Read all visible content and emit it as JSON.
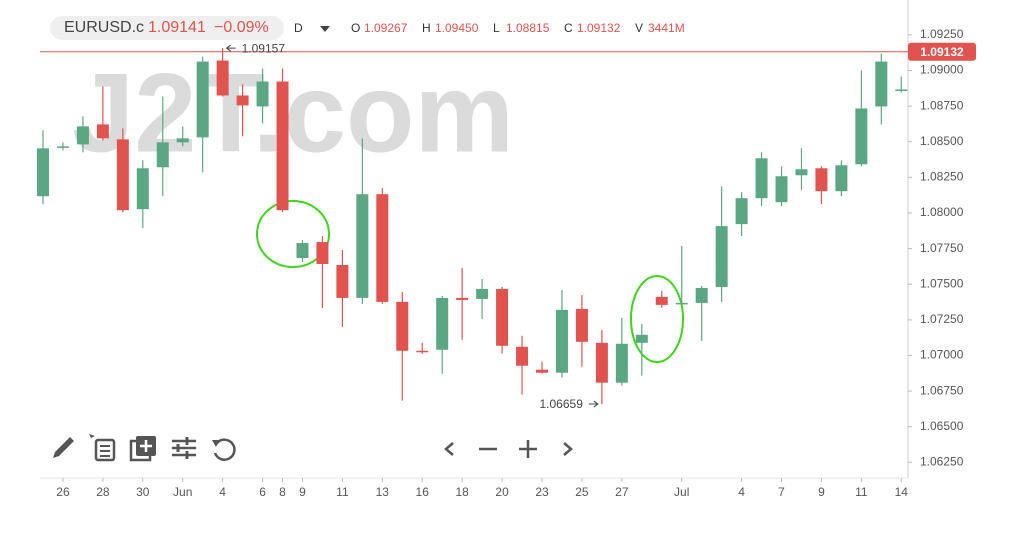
{
  "chart_data": {
    "type": "candlestick",
    "header": {
      "symbol": "EURUSD.c",
      "price": "1.09141",
      "change": "−0.09%",
      "timeframe": "D",
      "ohlcv": [
        {
          "key": "O",
          "value": "1.09267"
        },
        {
          "key": "H",
          "value": "1.09450"
        },
        {
          "key": "L",
          "value": "1.08815"
        },
        {
          "key": "C",
          "value": "1.09132"
        },
        {
          "key": "V",
          "value": "3441M"
        }
      ]
    },
    "watermark": "J2T.com",
    "categories": [
      null,
      "26",
      null,
      "28",
      null,
      "30",
      null,
      "Jun",
      null,
      "4",
      null,
      "6",
      "8",
      "9",
      null,
      "11",
      null,
      "13",
      null,
      "16",
      null,
      "18",
      null,
      "20",
      null,
      "23",
      null,
      "25",
      null,
      "27",
      null,
      null,
      "Jul",
      null,
      null,
      "4",
      null,
      "7",
      null,
      "9",
      null,
      "11",
      null,
      "14"
    ],
    "open": [
      1.08118,
      1.08461,
      1.08482,
      1.08622,
      1.08517,
      1.08027,
      1.08321,
      1.08496,
      1.08531,
      1.0907,
      1.08825,
      1.08748,
      1.08923,
      1.07684,
      1.07796,
      1.07635,
      1.07404,
      1.08132,
      1.07376,
      1.07033,
      1.0704,
      1.07404,
      1.07397,
      1.07467,
      1.07061,
      1.069,
      1.06879,
      1.07327,
      1.07089,
      1.06809,
      1.07089,
      1.07411,
      1.07362,
      1.07369,
      1.07481,
      1.07922,
      1.08104,
      1.08076,
      1.08265,
      1.08314,
      1.08153,
      1.08342,
      1.08748,
      1.0886
    ],
    "high": [
      1.0858,
      1.08496,
      1.08678,
      1.08888,
      1.08594,
      1.0837,
      1.08818,
      1.08608,
      1.09098,
      1.09157,
      1.08902,
      1.09014,
      1.09014,
      1.0781,
      1.07838,
      1.0774,
      1.08524,
      1.08174,
      1.07446,
      1.07089,
      1.07418,
      1.07614,
      1.07537,
      1.07481,
      1.07138,
      1.06956,
      1.0746,
      1.07425,
      1.0718,
      1.07264,
      1.07222,
      1.07453,
      1.07768,
      1.07488,
      1.08188,
      1.08146,
      1.08426,
      1.08328,
      1.08454,
      1.08328,
      1.0837,
      1.09,
      1.09119,
      1.08958
    ],
    "low": [
      1.08062,
      1.0844,
      1.08426,
      1.0851,
      1.08006,
      1.07894,
      1.08118,
      1.08468,
      1.08286,
      1.08818,
      1.08538,
      1.08629,
      1.08006,
      1.07656,
      1.07334,
      1.07201,
      1.07362,
      1.07362,
      1.06683,
      1.07012,
      1.06872,
      1.0711,
      1.07257,
      1.07012,
      1.06725,
      1.06872,
      1.06844,
      1.06921,
      1.06659,
      1.06788,
      1.06858,
      1.07334,
      1.07355,
      1.07103,
      1.07376,
      1.07838,
      1.08048,
      1.08048,
      1.0816,
      1.08062,
      1.08118,
      1.08328,
      1.08622,
      1.08846
    ],
    "close": [
      1.08454,
      1.08468,
      1.08608,
      1.08524,
      1.0802,
      1.08314,
      1.08496,
      1.08524,
      1.09063,
      1.08825,
      1.08755,
      1.08923,
      1.0802,
      1.07789,
      1.07642,
      1.07404,
      1.08132,
      1.07376,
      1.07033,
      1.07026,
      1.07404,
      1.0739,
      1.07467,
      1.07068,
      1.06928,
      1.06879,
      1.0732,
      1.07096,
      1.06809,
      1.07082,
      1.07145,
      1.07355,
      1.07369,
      1.07474,
      1.07908,
      1.08104,
      1.08384,
      1.08258,
      1.08307,
      1.08153,
      1.08335,
      1.08734,
      1.09063,
      1.08867
    ],
    "up_color": "#5ba783",
    "down_color": "#e0534f",
    "ylim": [
      1.0614,
      1.0946
    ],
    "yticks": [
      {
        "value": 1.0625,
        "label": "1.06250"
      },
      {
        "value": 1.065,
        "label": "1.06500"
      },
      {
        "value": 1.0675,
        "label": "1.06750"
      },
      {
        "value": 1.07,
        "label": "1.07000"
      },
      {
        "value": 1.0725,
        "label": "1.07250"
      },
      {
        "value": 1.075,
        "label": "1.07500"
      },
      {
        "value": 1.0775,
        "label": "1.07750"
      },
      {
        "value": 1.08,
        "label": "1.08000"
      },
      {
        "value": 1.0825,
        "label": "1.08250"
      },
      {
        "value": 1.085,
        "label": "1.08500"
      },
      {
        "value": 1.0875,
        "label": "1.08750"
      },
      {
        "value": 1.09,
        "label": "1.09000"
      },
      {
        "value": 1.0925,
        "label": "1.09250"
      }
    ],
    "last_price": {
      "value": 1.09132,
      "label": "1.09132"
    },
    "high_marker": {
      "value": 1.09157,
      "label": "1.09157"
    },
    "low_marker": {
      "value": 1.06659,
      "label": "1.06659"
    }
  }
}
